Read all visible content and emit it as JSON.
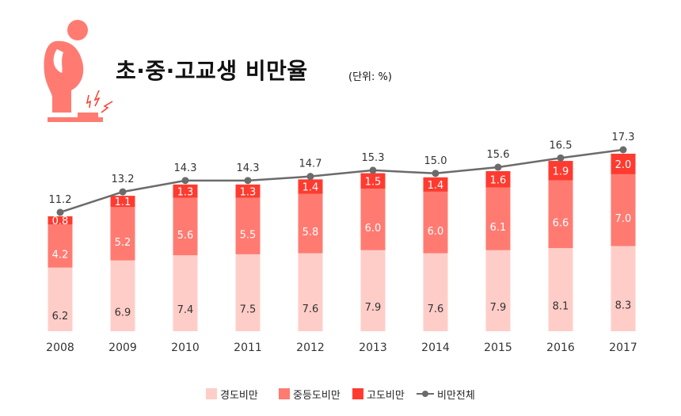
{
  "title": "초·중·고교생 비만율",
  "unit": "(단위: %)",
  "icon": "overweight-person-on-scale-icon",
  "colors": {
    "mild": "#ffcdc8",
    "moderate": "#ff7b72",
    "severe": "#ff3b30",
    "line": "#6b6b6b",
    "icon": "#ff7b72"
  },
  "chart_data": {
    "type": "bar",
    "stacked": true,
    "title": "초·중·고교생 비만율",
    "unit": "(단위: %)",
    "categories": [
      "2008",
      "2009",
      "2010",
      "2011",
      "2012",
      "2013",
      "2014",
      "2015",
      "2016",
      "2017"
    ],
    "series": [
      {
        "name": "경도비만",
        "values": [
          6.2,
          6.9,
          7.4,
          7.5,
          7.6,
          7.9,
          7.6,
          7.9,
          8.1,
          8.3
        ]
      },
      {
        "name": "중등도비만",
        "values": [
          4.2,
          5.2,
          5.6,
          5.5,
          5.8,
          6.0,
          6.0,
          6.1,
          6.6,
          7.0
        ]
      },
      {
        "name": "고도비만",
        "values": [
          0.8,
          1.1,
          1.3,
          1.3,
          1.4,
          1.5,
          1.4,
          1.6,
          1.9,
          2.0
        ]
      }
    ],
    "line_series": {
      "name": "비만전체",
      "values": [
        11.2,
        13.2,
        14.3,
        14.3,
        14.7,
        15.3,
        15.0,
        15.6,
        16.5,
        17.3
      ]
    },
    "value_labels": {
      "mild": [
        "6.2",
        "6.9",
        "7.4",
        "7.5",
        "7.6",
        "7.9",
        "7.6",
        "7.9",
        "8.1",
        "8.3"
      ],
      "moderate": [
        "4.2",
        "5.2",
        "5.6",
        "5.5",
        "5.8",
        "6.0",
        "6.0",
        "6.1",
        "6.6",
        "7.0"
      ],
      "severe": [
        "0.8",
        "1.1",
        "1.3",
        "1.3",
        "1.4",
        "1.5",
        "1.4",
        "1.6",
        "1.9",
        "2.0"
      ],
      "total": [
        "11.2",
        "13.2",
        "14.3",
        "14.3",
        "14.7",
        "15.3",
        "15.0",
        "15.6",
        "16.5",
        "17.3"
      ]
    },
    "ylim": [
      0,
      17.3
    ],
    "grid": false,
    "legend": "bottom"
  },
  "legend": [
    "경도비만",
    "중등도비만",
    "고도비만",
    "비만전체"
  ]
}
